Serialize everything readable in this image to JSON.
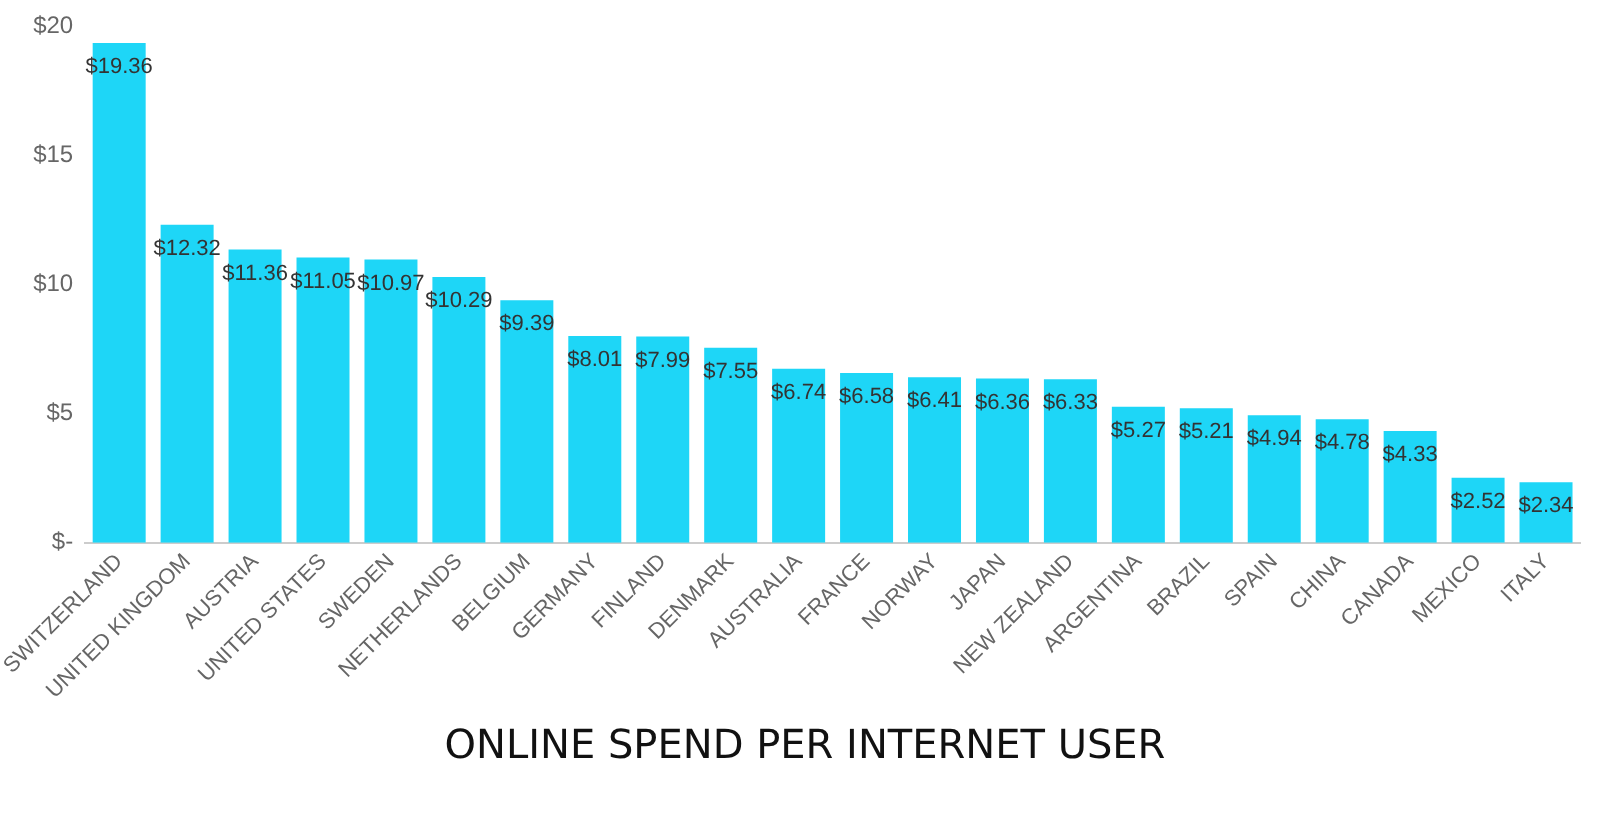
{
  "chart_data": {
    "type": "bar",
    "title": "ONLINE SPEND PER INTERNET USER",
    "categories": [
      "SWITZERLAND",
      "UNITED KINGDOM",
      "AUSTRIA",
      "UNITED STATES",
      "SWEDEN",
      "NETHERLANDS",
      "BELGIUM",
      "GERMANY",
      "FINLAND",
      "DENMARK",
      "AUSTRALIA",
      "FRANCE",
      "NORWAY",
      "JAPAN",
      "NEW ZEALAND",
      "ARGENTINA",
      "BRAZIL",
      "SPAIN",
      "CHINA",
      "CANADA",
      "MEXICO",
      "ITALY"
    ],
    "values": [
      19.36,
      12.32,
      11.36,
      11.05,
      10.97,
      10.29,
      9.39,
      8.01,
      7.99,
      7.55,
      6.74,
      6.58,
      6.41,
      6.36,
      6.33,
      5.27,
      5.21,
      4.94,
      4.78,
      4.33,
      2.52,
      2.34
    ],
    "value_labels": [
      "$19.36",
      "$12.32",
      "$11.36",
      "$11.05",
      "$10.97",
      "$10.29",
      "$9.39",
      "$8.01",
      "$7.99",
      "$7.55",
      "$6.74",
      "$6.58",
      "$6.41",
      "$6.36",
      "$6.33",
      "$5.27",
      "$5.21",
      "$4.94",
      "$4.78",
      "$4.33",
      "$2.52",
      "$2.34"
    ],
    "color": "#1ed6f7",
    "ylim": [
      0,
      20
    ],
    "yticks": [
      {
        "value": 0,
        "label": "$-"
      },
      {
        "value": 5,
        "label": "$5"
      },
      {
        "value": 10,
        "label": "$10"
      },
      {
        "value": 15,
        "label": "$15"
      },
      {
        "value": 20,
        "label": "$20"
      }
    ],
    "grid": false,
    "legend": false
  }
}
